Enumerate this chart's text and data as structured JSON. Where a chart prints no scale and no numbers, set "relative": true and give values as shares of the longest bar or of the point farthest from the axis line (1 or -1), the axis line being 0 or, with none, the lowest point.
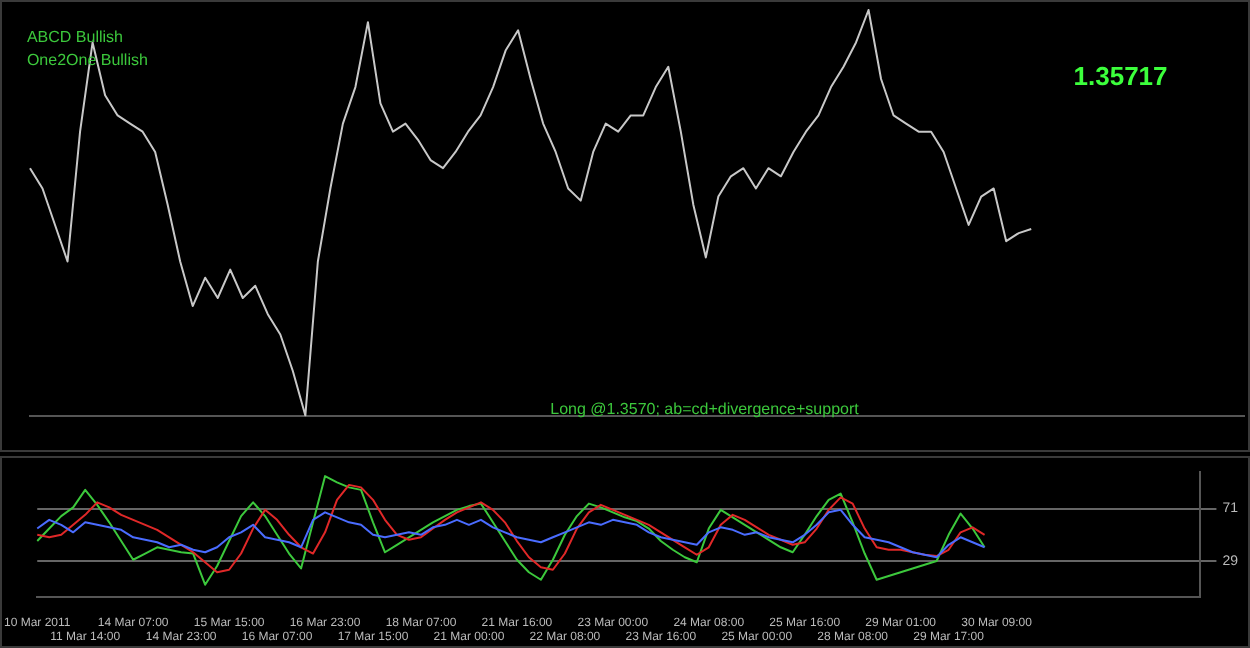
{
  "chart_data": [
    {
      "type": "line",
      "relative": true,
      "grid": false,
      "legend": false,
      "marker": "none",
      "line_style": "solid",
      "annotations": [
        "ABCD Bullish",
        "One2One Bullish",
        "Long @1.3570; ab=cd+divergence+support",
        "1.35717"
      ],
      "categories": [
        null,
        null,
        null,
        null,
        null,
        null,
        null,
        null,
        null,
        null,
        null,
        null,
        null,
        null,
        null,
        null,
        null,
        null,
        null,
        null,
        null,
        null,
        null,
        null,
        null,
        null,
        null,
        null,
        null,
        null,
        null,
        null,
        null,
        null,
        null,
        null,
        null,
        null,
        null,
        null,
        null,
        null,
        null,
        null,
        null,
        null,
        null,
        null,
        null,
        null,
        null,
        null,
        null,
        null,
        null,
        null,
        null,
        null,
        null,
        null,
        null,
        null,
        null,
        null,
        null,
        null,
        null,
        null,
        null,
        null,
        null,
        null,
        null,
        null,
        null,
        null,
        null,
        null,
        null,
        null,
        null,
        null,
        null,
        null,
        null,
        null,
        null,
        null,
        null,
        null,
        null,
        null,
        null,
        null,
        null,
        null,
        null,
        null
      ],
      "series": [
        {
          "color": "#c8c8c8",
          "values": [
            0.61,
            0.56,
            0.47,
            0.38,
            0.7,
            0.92,
            0.79,
            0.74,
            0.72,
            0.7,
            0.65,
            0.52,
            0.38,
            0.27,
            0.34,
            0.29,
            0.36,
            0.29,
            0.32,
            0.25,
            0.2,
            0.11,
            0,
            0.38,
            0.56,
            0.72,
            0.81,
            0.97,
            0.77,
            0.7,
            0.72,
            0.68,
            0.63,
            0.61,
            0.65,
            0.7,
            0.74,
            0.81,
            0.9,
            0.95,
            0.83,
            0.72,
            0.65,
            0.56,
            0.53,
            0.65,
            0.72,
            0.7,
            0.74,
            0.74,
            0.81,
            0.86,
            0.7,
            0.52,
            0.39,
            0.54,
            0.59,
            0.61,
            0.56,
            0.61,
            0.59,
            0.65,
            0.7,
            0.74,
            0.81,
            0.86,
            0.92,
            1,
            0.83,
            0.74,
            0.72,
            0.7,
            0.7,
            0.65,
            0.56,
            0.47,
            0.54,
            0.56,
            0.43,
            0.45,
            0.46,
            null,
            null,
            null,
            null,
            null,
            null,
            null,
            null,
            null,
            null,
            null,
            null,
            null,
            null,
            null,
            null,
            null
          ]
        }
      ]
    },
    {
      "type": "line",
      "ylim": [
        0,
        100
      ],
      "yticks": [
        29,
        71
      ],
      "grid": "y",
      "legend": false,
      "marker": "none",
      "line_style": "solid",
      "categories": [
        "10 Mar 2011",
        null,
        null,
        null,
        "11 Mar 14:00",
        null,
        null,
        null,
        "14 Mar 07:00",
        null,
        null,
        null,
        "14 Mar 23:00",
        null,
        null,
        null,
        "15 Mar 15:00",
        null,
        null,
        null,
        "16 Mar 07:00",
        null,
        null,
        null,
        "16 Mar 23:00",
        null,
        null,
        null,
        "17 Mar 15:00",
        null,
        null,
        null,
        "18 Mar 07:00",
        null,
        null,
        null,
        "21 Mar 00:00",
        null,
        null,
        null,
        "21 Mar 16:00",
        null,
        null,
        null,
        "22 Mar 08:00",
        null,
        null,
        null,
        "23 Mar 00:00",
        null,
        null,
        null,
        "23 Mar 16:00",
        null,
        null,
        null,
        "24 Mar 08:00",
        null,
        null,
        null,
        "25 Mar 00:00",
        null,
        null,
        null,
        "25 Mar 16:00",
        null,
        null,
        null,
        "28 Mar 08:00",
        null,
        null,
        null,
        "29 Mar 01:00",
        null,
        null,
        null,
        "29 Mar 17:00",
        null,
        null,
        null,
        "30 Mar 09:00",
        null,
        null,
        null,
        null,
        null,
        null,
        null,
        null,
        null,
        null,
        null,
        null,
        null,
        null,
        null,
        null,
        null
      ],
      "series": [
        {
          "color": "#4a6cff",
          "values": [
            55,
            62,
            58,
            52,
            60,
            58,
            56,
            54,
            48,
            46,
            44,
            40,
            42,
            38,
            36,
            40,
            48,
            52,
            58,
            48,
            46,
            44,
            40,
            62,
            68,
            64,
            60,
            58,
            50,
            48,
            50,
            52,
            50,
            56,
            58,
            62,
            58,
            62,
            56,
            52,
            48,
            46,
            44,
            48,
            52,
            56,
            60,
            58,
            62,
            60,
            58,
            52,
            48,
            46,
            44,
            42,
            52,
            56,
            54,
            50,
            52,
            48,
            46,
            44,
            50,
            58,
            68,
            70,
            58,
            48,
            46,
            44,
            40,
            36,
            34,
            32,
            42,
            48,
            44,
            40,
            null,
            null,
            null,
            null,
            null,
            null,
            null,
            null,
            null,
            null,
            null,
            null,
            null,
            null,
            null,
            null,
            null,
            null
          ]
        },
        {
          "color": "#e02828",
          "values": [
            50,
            48,
            50,
            58,
            66,
            76,
            72,
            66,
            62,
            58,
            54,
            48,
            42,
            36,
            28,
            20,
            22,
            35,
            55,
            70,
            62,
            50,
            40,
            35,
            52,
            78,
            90,
            88,
            78,
            62,
            50,
            46,
            48,
            55,
            62,
            68,
            72,
            76,
            70,
            60,
            45,
            32,
            24,
            22,
            35,
            55,
            68,
            74,
            70,
            66,
            62,
            58,
            52,
            46,
            40,
            34,
            40,
            58,
            66,
            62,
            56,
            50,
            46,
            42,
            44,
            55,
            70,
            80,
            75,
            55,
            40,
            38,
            38,
            36,
            34,
            33,
            38,
            52,
            56,
            50,
            null,
            null,
            null,
            null,
            null,
            null,
            null,
            null,
            null,
            null,
            null,
            null,
            null,
            null,
            null,
            null,
            null,
            null
          ]
        },
        {
          "color": "#3cc83c",
          "values": [
            45,
            55,
            65,
            72,
            86,
            74,
            60,
            45,
            30,
            35,
            40,
            38,
            36,
            35,
            10,
            25,
            45,
            65,
            76,
            65,
            50,
            35,
            23,
            60,
            97,
            92,
            88,
            86,
            60,
            36,
            42,
            48,
            54,
            60,
            65,
            70,
            73,
            75,
            60,
            45,
            30,
            20,
            14,
            30,
            50,
            65,
            75,
            72,
            68,
            64,
            61,
            55,
            45,
            38,
            32,
            28,
            55,
            70,
            64,
            58,
            52,
            46,
            40,
            36,
            50,
            65,
            78,
            83,
            60,
            35,
            14,
            17,
            20,
            23,
            26,
            29,
            50,
            67,
            55,
            40,
            null,
            null,
            null,
            null,
            null,
            null,
            null,
            null,
            null,
            null,
            null,
            null,
            null,
            null,
            null,
            null,
            null,
            null
          ]
        }
      ]
    }
  ]
}
